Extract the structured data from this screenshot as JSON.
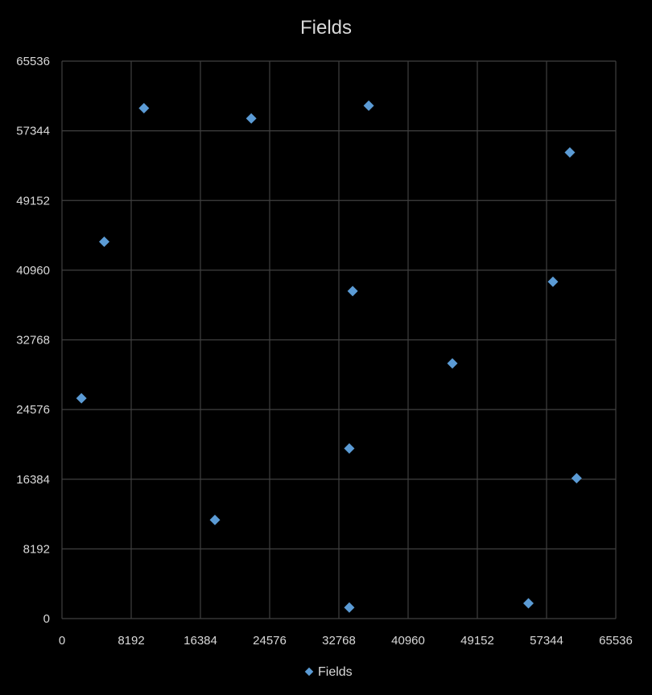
{
  "chart_data": {
    "type": "scatter",
    "title": "Fields",
    "xlabel": "",
    "ylabel": "",
    "xlim": [
      0,
      65536
    ],
    "ylim": [
      0,
      65536
    ],
    "x_ticks": [
      "0",
      "8192",
      "16384",
      "24576",
      "32768",
      "40960",
      "49152",
      "57344",
      "65536"
    ],
    "y_ticks": [
      "0",
      "8192",
      "16384",
      "24576",
      "32768",
      "40960",
      "49152",
      "57344",
      "65536"
    ],
    "grid": true,
    "legend_position": "bottom",
    "series": [
      {
        "name": "Fields",
        "color": "#5b9bd5",
        "marker": "diamond",
        "points": [
          {
            "x": 2300,
            "y": 25900
          },
          {
            "x": 5000,
            "y": 44300
          },
          {
            "x": 9700,
            "y": 60000
          },
          {
            "x": 18100,
            "y": 11600
          },
          {
            "x": 22400,
            "y": 58800
          },
          {
            "x": 34000,
            "y": 1300
          },
          {
            "x": 34000,
            "y": 20000
          },
          {
            "x": 34400,
            "y": 38500
          },
          {
            "x": 36300,
            "y": 60300
          },
          {
            "x": 46200,
            "y": 30000
          },
          {
            "x": 55200,
            "y": 1800
          },
          {
            "x": 58100,
            "y": 39600
          },
          {
            "x": 60100,
            "y": 54800
          },
          {
            "x": 60900,
            "y": 16500
          }
        ]
      }
    ]
  }
}
